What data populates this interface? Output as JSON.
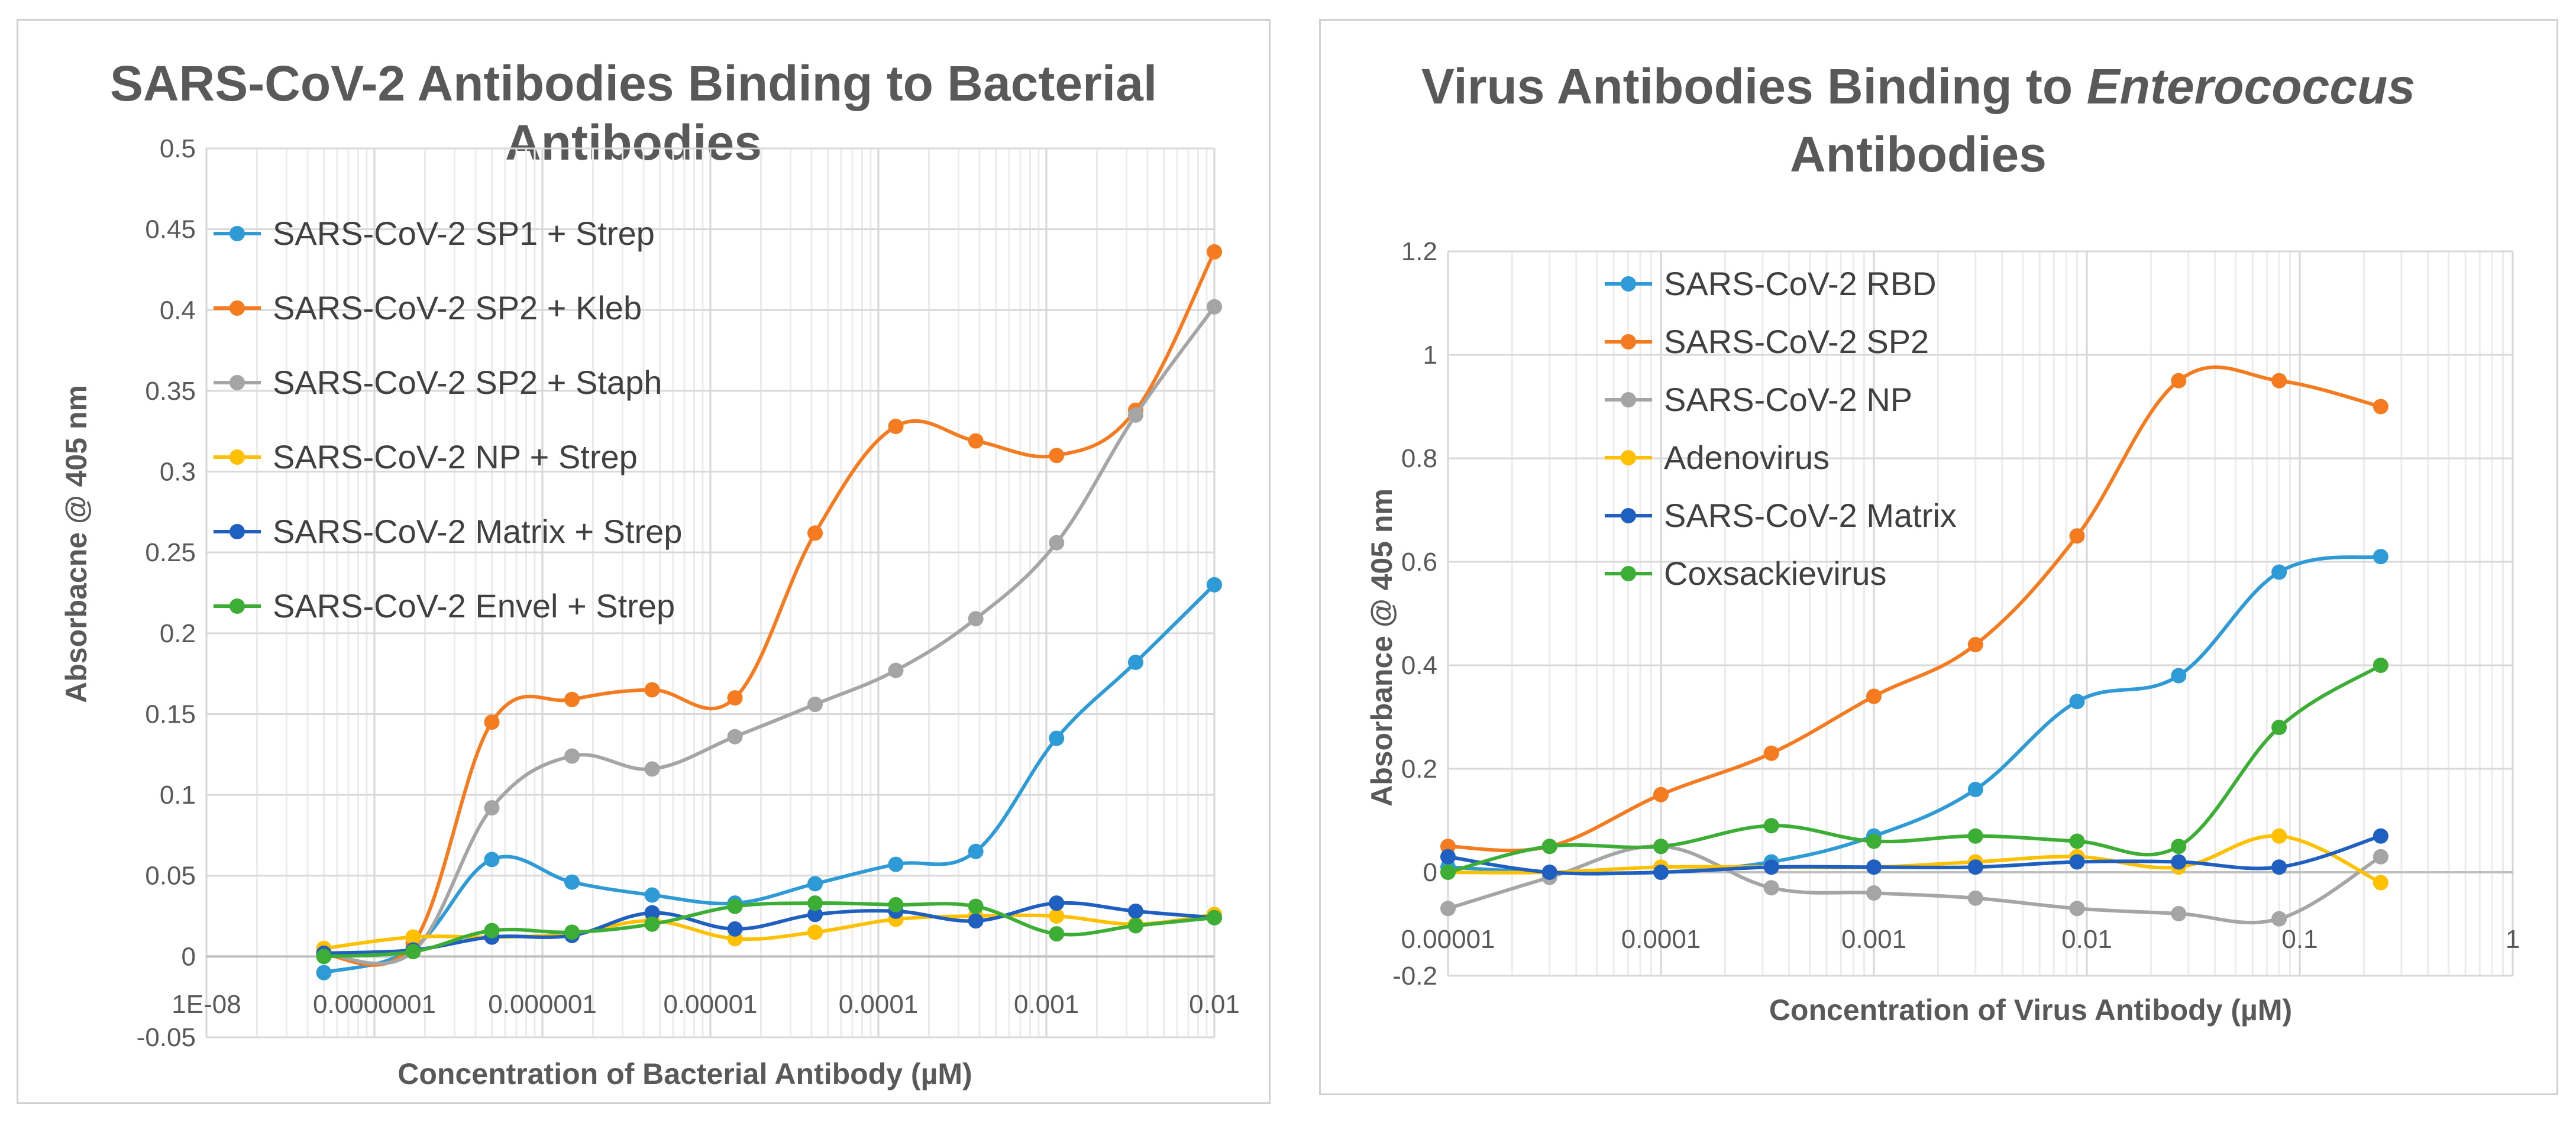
{
  "chart_data": [
    {
      "type": "line",
      "title_line1": "SARS-CoV-2 Antibodies Binding to Bacterial",
      "title_line2": "Antibodies",
      "xlabel": "Concentration of Bacterial Antibody (µM)",
      "ylabel": "Absorbacne  @ 405 nm",
      "xscale": "log",
      "xlim": [
        1e-08,
        0.01
      ],
      "ylim": [
        -0.05,
        0.5
      ],
      "grid": true,
      "legend_position": "top-left",
      "y_ticks": [
        "-0.05",
        "0",
        "0.05",
        "0.1",
        "0.15",
        "0.2",
        "0.25",
        "0.3",
        "0.35",
        "0.4",
        "0.45",
        "0.5"
      ],
      "x_ticks": [
        "1E-08",
        "0.0000001",
        "0.000001",
        "0.00001",
        "0.0001",
        "0.001",
        "0.01"
      ],
      "x": [
        5e-08,
        1.7e-07,
        5e-07,
        1.5e-06,
        4.5e-06,
        1.4e-05,
        4.2e-05,
        0.000127,
        0.00038,
        0.00115,
        0.0034,
        0.01
      ],
      "series": [
        {
          "name": "SARS-CoV-2 SP1 + Strep",
          "color": "#2E9BD6",
          "values": [
            -0.01,
            0.005,
            0.06,
            0.046,
            0.038,
            0.033,
            0.045,
            0.057,
            0.065,
            0.135,
            0.182,
            0.23
          ]
        },
        {
          "name": "SARS-CoV-2 SP2 + Kleb",
          "color": "#F47B20",
          "values": [
            0.001,
            0.008,
            0.145,
            0.159,
            0.165,
            0.16,
            0.262,
            0.328,
            0.319,
            0.31,
            0.338,
            0.436
          ]
        },
        {
          "name": "SARS-CoV-2 SP2 + Staph",
          "color": "#A5A5A5",
          "values": [
            0.002,
            0.003,
            0.092,
            0.124,
            0.116,
            0.136,
            0.156,
            0.177,
            0.209,
            0.256,
            0.335,
            0.402
          ]
        },
        {
          "name": "SARS-CoV-2 NP + Strep",
          "color": "#FFC000",
          "values": [
            0.005,
            0.012,
            0.012,
            0.014,
            0.022,
            0.011,
            0.015,
            0.023,
            0.025,
            0.025,
            0.02,
            0.026
          ]
        },
        {
          "name": "SARS-CoV-2 Matrix + Strep",
          "color": "#1F5FBF",
          "values": [
            0.002,
            0.004,
            0.012,
            0.013,
            0.027,
            0.017,
            0.026,
            0.028,
            0.022,
            0.033,
            0.028,
            0.024
          ]
        },
        {
          "name": "SARS-CoV-2 Envel + Strep",
          "color": "#3DAE35",
          "values": [
            0.0,
            0.003,
            0.016,
            0.015,
            0.02,
            0.031,
            0.033,
            0.032,
            0.031,
            0.014,
            0.019,
            0.024
          ]
        }
      ]
    },
    {
      "type": "line",
      "title_line1_normal": "Virus Antibodies Binding to ",
      "title_line1_italic": "Enterococcus",
      "title_line2": "Antibodies",
      "xlabel": "Concentration of Virus Antibody (µM)",
      "ylabel": "Absorbance  @ 405 nm",
      "xscale": "log",
      "xlim": [
        1e-05,
        1
      ],
      "ylim": [
        -0.2,
        1.2
      ],
      "grid": true,
      "legend_position": "top-left",
      "y_ticks": [
        "-0.2",
        "0",
        "0.2",
        "0.4",
        "0.6",
        "0.8",
        "1",
        "1.2"
      ],
      "x_ticks": [
        "0.00001",
        "0.0001",
        "0.001",
        "0.01",
        "0.1",
        "1"
      ],
      "x": [
        1e-05,
        3e-05,
        0.0001,
        0.00033,
        0.001,
        0.003,
        0.009,
        0.027,
        0.08,
        0.24
      ],
      "series": [
        {
          "name": "SARS-CoV-2 RBD",
          "color": "#2E9BD6",
          "values": [
            0.01,
            0.0,
            0.0,
            0.02,
            0.07,
            0.16,
            0.33,
            0.38,
            0.58,
            0.61
          ]
        },
        {
          "name": "SARS-CoV-2 SP2",
          "color": "#F47B20",
          "values": [
            0.05,
            0.05,
            0.15,
            0.23,
            0.34,
            0.44,
            0.65,
            0.95,
            0.95,
            0.9
          ]
        },
        {
          "name": "SARS-CoV-2 NP",
          "color": "#A5A5A5",
          "values": [
            -0.07,
            -0.01,
            0.05,
            -0.03,
            -0.04,
            -0.05,
            -0.07,
            -0.08,
            -0.09,
            0.03
          ]
        },
        {
          "name": "Adenovirus",
          "color": "#FFC000",
          "values": [
            0.0,
            0.0,
            0.01,
            0.01,
            0.01,
            0.02,
            0.03,
            0.01,
            0.07,
            -0.02
          ]
        },
        {
          "name": "SARS-CoV-2 Matrix",
          "color": "#1F5FBF",
          "values": [
            0.03,
            0.0,
            0.0,
            0.01,
            0.01,
            0.01,
            0.02,
            0.02,
            0.01,
            0.07
          ]
        },
        {
          "name": "Coxsackievirus",
          "color": "#3DAE35",
          "values": [
            0.0,
            0.05,
            0.05,
            0.09,
            0.06,
            0.07,
            0.06,
            0.05,
            0.28,
            0.4
          ]
        }
      ]
    }
  ]
}
